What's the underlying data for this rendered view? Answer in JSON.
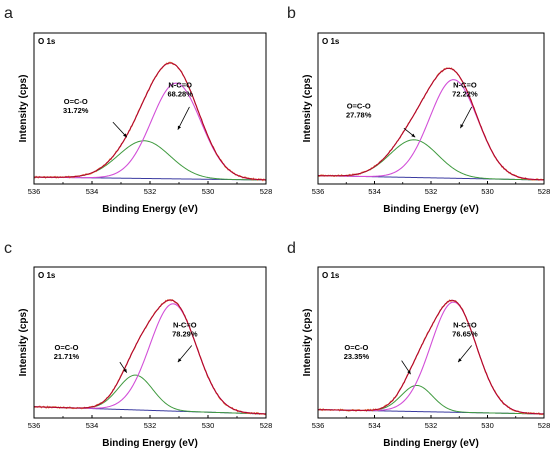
{
  "colors": {
    "raw": "#e0703a",
    "envelope": "#b00030",
    "peak_n": "#d24fd8",
    "peak_o": "#3f9a3f",
    "background": "#3a3aa0",
    "axis": "#000000"
  },
  "chart_data": [
    {
      "type": "line",
      "panel_label": "a",
      "inner_label": "O 1s",
      "xlabel": "Binding Energy (eV)",
      "ylabel": "Intensity (cps)",
      "xlim": [
        536,
        528
      ],
      "x_ticks": [
        536,
        534,
        532,
        530,
        528
      ],
      "reversed_x": true,
      "peaks": [
        {
          "name": "O=C-O",
          "center": 532.2,
          "height": 0.26,
          "fwhm": 2.1,
          "percent": "31.72%"
        },
        {
          "name": "N-C=O",
          "center": 531.1,
          "height": 0.66,
          "fwhm": 2.0,
          "percent": "68.28%"
        }
      ],
      "baseline": [
        0.02,
        0.0
      ],
      "annotations": [
        {
          "text": "N-C=O",
          "value": "68.28%"
        },
        {
          "text": "O=C-O",
          "value": "31.72%"
        }
      ]
    },
    {
      "type": "line",
      "panel_label": "b",
      "inner_label": "O 1s",
      "xlabel": "Binding Energy (eV)",
      "ylabel": "Intensity (cps)",
      "xlim": [
        536,
        528
      ],
      "x_ticks": [
        536,
        534,
        532,
        530,
        528
      ],
      "reversed_x": true,
      "peaks": [
        {
          "name": "O=C-O",
          "center": 532.6,
          "height": 0.26,
          "fwhm": 2.0,
          "percent": "27.78%"
        },
        {
          "name": "N-C=O",
          "center": 531.2,
          "height": 0.68,
          "fwhm": 2.0,
          "percent": "72.22%"
        }
      ],
      "baseline": [
        0.03,
        0.0
      ],
      "annotations": [
        {
          "text": "N-C=O",
          "value": "72.22%"
        },
        {
          "text": "O=C-O",
          "value": "27.78%"
        }
      ]
    },
    {
      "type": "line",
      "panel_label": "c",
      "inner_label": "O 1s",
      "xlabel": "Binding Energy (eV)",
      "ylabel": "Intensity (cps)",
      "xlim": [
        536,
        528
      ],
      "x_ticks": [
        536,
        534,
        532,
        530,
        528
      ],
      "reversed_x": true,
      "peaks": [
        {
          "name": "O=C-O",
          "center": 532.5,
          "height": 0.24,
          "fwhm": 1.4,
          "percent": "21.71%"
        },
        {
          "name": "N-C=O",
          "center": 531.2,
          "height": 0.74,
          "fwhm": 1.9,
          "percent": "78.29%"
        }
      ],
      "baseline": [
        0.05,
        0.0
      ],
      "annotations": [
        {
          "text": "N-C=O",
          "value": "78.29%"
        },
        {
          "text": "O=C-O",
          "value": "21.71%"
        }
      ]
    },
    {
      "type": "line",
      "panel_label": "d",
      "inner_label": "O 1s",
      "xlabel": "Binding Energy (eV)",
      "ylabel": "Intensity (cps)",
      "xlim": [
        536,
        528
      ],
      "x_ticks": [
        536,
        534,
        532,
        530,
        528
      ],
      "reversed_x": true,
      "peaks": [
        {
          "name": "O=C-O",
          "center": 532.5,
          "height": 0.18,
          "fwhm": 1.3,
          "percent": "23.35%"
        },
        {
          "name": "N-C=O",
          "center": 531.2,
          "height": 0.76,
          "fwhm": 1.9,
          "percent": "76.65%"
        }
      ],
      "baseline": [
        0.03,
        0.0
      ],
      "annotations": [
        {
          "text": "N-C=O",
          "value": "76.65%"
        },
        {
          "text": "O=C-O",
          "value": "23.35%"
        }
      ]
    }
  ]
}
